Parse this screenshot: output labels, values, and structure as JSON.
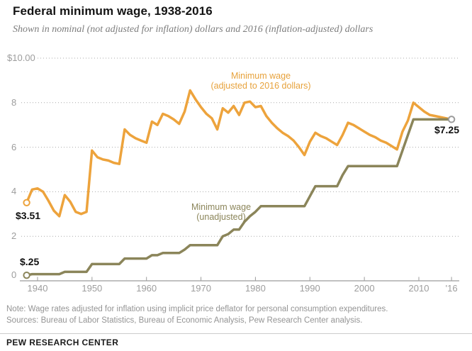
{
  "header": {
    "title": "Federal minimum wage, 1938-2016",
    "subtitle": "Shown in nominal (not adjusted for inflation) dollars and 2016 (inflation-adjusted) dollars"
  },
  "chart_data": {
    "type": "line",
    "title": "Federal minimum wage, 1938-2016",
    "subtitle": "Shown in nominal (not adjusted for inflation) dollars and 2016 (inflation-adjusted) dollars",
    "xlim": [
      1938,
      2016
    ],
    "ylim": [
      0,
      10
    ],
    "grid": "dotted-horizontal",
    "legend_position": "inline-labels",
    "x": [
      1938,
      1939,
      1940,
      1941,
      1942,
      1943,
      1944,
      1945,
      1946,
      1947,
      1948,
      1949,
      1950,
      1951,
      1952,
      1953,
      1954,
      1955,
      1956,
      1957,
      1958,
      1959,
      1960,
      1961,
      1962,
      1963,
      1964,
      1965,
      1966,
      1967,
      1968,
      1969,
      1970,
      1971,
      1972,
      1973,
      1974,
      1975,
      1976,
      1977,
      1978,
      1979,
      1980,
      1981,
      1982,
      1983,
      1984,
      1985,
      1986,
      1987,
      1988,
      1989,
      1990,
      1991,
      1992,
      1993,
      1994,
      1995,
      1996,
      1997,
      1998,
      1999,
      2000,
      2001,
      2002,
      2003,
      2004,
      2005,
      2006,
      2007,
      2008,
      2009,
      2010,
      2011,
      2012,
      2013,
      2014,
      2015,
      2016
    ],
    "series": [
      {
        "name": "Minimum wage (adjusted to 2016 dollars)",
        "label_line1": "Minimum wage",
        "label_line2": "(adjusted to 2016 dollars)",
        "color": "#EDA33C",
        "values": [
          3.51,
          4.1,
          4.15,
          4.0,
          3.6,
          3.15,
          2.9,
          3.85,
          3.55,
          3.1,
          3.0,
          3.1,
          5.85,
          5.55,
          5.45,
          5.4,
          5.3,
          5.25,
          6.8,
          6.55,
          6.4,
          6.3,
          6.2,
          7.15,
          7.0,
          7.5,
          7.4,
          7.25,
          7.05,
          7.6,
          8.55,
          8.15,
          7.8,
          7.5,
          7.3,
          6.8,
          7.75,
          7.55,
          7.85,
          7.45,
          8.0,
          8.05,
          7.8,
          7.85,
          7.4,
          7.1,
          6.85,
          6.65,
          6.5,
          6.3,
          6.0,
          5.65,
          6.25,
          6.65,
          6.5,
          6.4,
          6.25,
          6.1,
          6.55,
          7.1,
          7.0,
          6.85,
          6.7,
          6.55,
          6.45,
          6.3,
          6.2,
          6.05,
          5.9,
          6.7,
          7.2,
          8.0,
          7.8,
          7.6,
          7.45,
          7.4,
          7.35,
          7.3,
          7.25
        ]
      },
      {
        "name": "Minimum wage (unadjusted)",
        "label_line1": "Minimum wage",
        "label_line2": "(unadjusted)",
        "color": "#8B855A",
        "values": [
          0.25,
          0.3,
          0.3,
          0.3,
          0.3,
          0.3,
          0.3,
          0.4,
          0.4,
          0.4,
          0.4,
          0.4,
          0.75,
          0.75,
          0.75,
          0.75,
          0.75,
          0.75,
          1.0,
          1.0,
          1.0,
          1.0,
          1.0,
          1.15,
          1.15,
          1.25,
          1.25,
          1.25,
          1.25,
          1.4,
          1.6,
          1.6,
          1.6,
          1.6,
          1.6,
          1.6,
          2.0,
          2.1,
          2.3,
          2.3,
          2.65,
          2.9,
          3.1,
          3.35,
          3.35,
          3.35,
          3.35,
          3.35,
          3.35,
          3.35,
          3.35,
          3.35,
          3.8,
          4.25,
          4.25,
          4.25,
          4.25,
          4.25,
          4.75,
          5.15,
          5.15,
          5.15,
          5.15,
          5.15,
          5.15,
          5.15,
          5.15,
          5.15,
          5.15,
          5.85,
          6.55,
          7.25,
          7.25,
          7.25,
          7.25,
          7.25,
          7.25,
          7.25,
          7.25
        ]
      }
    ],
    "yticks": [
      {
        "label": "$10.00",
        "value": 10
      },
      {
        "label": "8",
        "value": 8
      },
      {
        "label": "6",
        "value": 6
      },
      {
        "label": "4",
        "value": 4
      },
      {
        "label": "2",
        "value": 2
      },
      {
        "label": "0",
        "value": 0
      }
    ],
    "xticks": [
      {
        "label": "1940",
        "year": 1940
      },
      {
        "label": "1950",
        "year": 1950
      },
      {
        "label": "1960",
        "year": 1960
      },
      {
        "label": "1970",
        "year": 1970
      },
      {
        "label": "1980",
        "year": 1980
      },
      {
        "label": "1990",
        "year": 1990
      },
      {
        "label": "2000",
        "year": 2000
      },
      {
        "label": "2010",
        "year": 2010
      },
      {
        "label": "'16",
        "year": 2016
      }
    ],
    "markers": [
      {
        "year": 1938,
        "value": 3.51,
        "color": "#EDA33C",
        "name": "marker-adjusted-start"
      },
      {
        "year": 1938,
        "value": 0.25,
        "color": "#8B855A",
        "name": "marker-unadjusted-start"
      },
      {
        "year": 2016,
        "value": 7.25,
        "color": "#9c9c9c",
        "name": "marker-end"
      }
    ],
    "annotations": {
      "adjusted_start": "$3.51",
      "unadjusted_start": "$.25",
      "end": "$7.25"
    },
    "colors": {
      "adjusted_line": "#EDA33C",
      "unadjusted_line": "#8B855A",
      "gridline": "#a9a9a9",
      "axis": "#9c9c9c",
      "tick_label": "#9d9d9d"
    }
  },
  "footer": {
    "note": "Note: Wage rates adjusted for inflation using implicit price deflator for personal consumption expenditures.",
    "sources": "Sources: Bureau of Labor Statistics, Bureau of Economic Analysis, Pew Research Center analysis.",
    "brand": "PEW RESEARCH CENTER"
  }
}
